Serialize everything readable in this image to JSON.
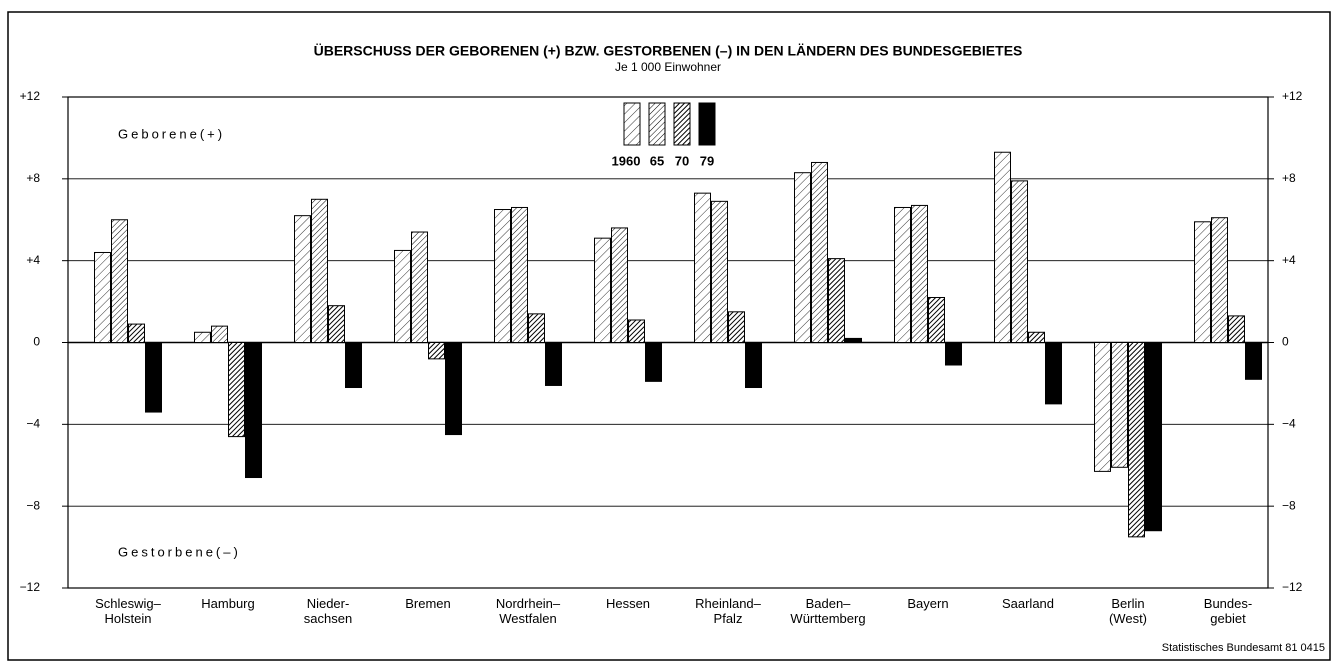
{
  "chart_data": {
    "type": "bar",
    "title": "ÜBERSCHUSS DER GEBORENEN (+) BZW. GESTORBENEN (–) IN DEN LÄNDERN DES BUNDESGEBIETES",
    "subtitle": "Je 1 000 Einwohner",
    "annotations": [
      "Geborene(+)",
      "Gestorbene(–)"
    ],
    "source": "Statistisches Bundesamt 81 0415",
    "categories": [
      "Schleswig–\nHolstein",
      "Hamburg",
      "Nieder-\nsachsen",
      "Bremen",
      "Nordrhein–\nWestfalen",
      "Hessen",
      "Rheinland–\nPfalz",
      "Baden–\nWürttemberg",
      "Bayern",
      "Saarland",
      "Berlin\n(West)",
      "Bundes-\ngebiet"
    ],
    "series": [
      {
        "name": "1960",
        "color": "#000000",
        "values": [
          4.4,
          0.5,
          6.2,
          4.5,
          6.5,
          5.1,
          7.3,
          8.3,
          6.6,
          9.3,
          -6.3,
          5.9
        ]
      },
      {
        "name": "65",
        "color": "#000000",
        "values": [
          6.0,
          0.8,
          7.0,
          5.4,
          6.6,
          5.6,
          6.9,
          8.8,
          6.7,
          7.9,
          -6.1,
          6.1
        ]
      },
      {
        "name": "70",
        "color": "#000000",
        "values": [
          0.9,
          -4.6,
          1.8,
          -0.8,
          1.4,
          1.1,
          1.5,
          4.1,
          2.2,
          0.5,
          -9.5,
          1.3
        ]
      },
      {
        "name": "79",
        "color": "#000000",
        "values": [
          -3.4,
          -6.6,
          -2.2,
          -4.5,
          -2.1,
          -1.9,
          -2.2,
          0.2,
          -1.1,
          -3.0,
          -9.2,
          -1.8
        ]
      }
    ],
    "ylim": [
      -12,
      12
    ],
    "yticks": [
      {
        "value": 12,
        "label": "+12"
      },
      {
        "value": 8,
        "label": "+8"
      },
      {
        "value": 4,
        "label": "+4"
      },
      0,
      {
        "value": -4,
        "label": "−4"
      },
      {
        "value": -8,
        "label": "−8"
      },
      {
        "value": -12,
        "label": "−12"
      }
    ],
    "y2lim": [
      -12,
      12
    ],
    "y2ticks": [
      {
        "value": 12,
        "label": "+12"
      },
      {
        "value": 8,
        "label": "+8"
      },
      {
        "value": 4,
        "label": "+4"
      },
      0,
      {
        "value": -4,
        "label": "−4"
      },
      {
        "value": -8,
        "label": "−8"
      },
      {
        "value": -12,
        "label": "−12"
      }
    ],
    "grid": true
  }
}
